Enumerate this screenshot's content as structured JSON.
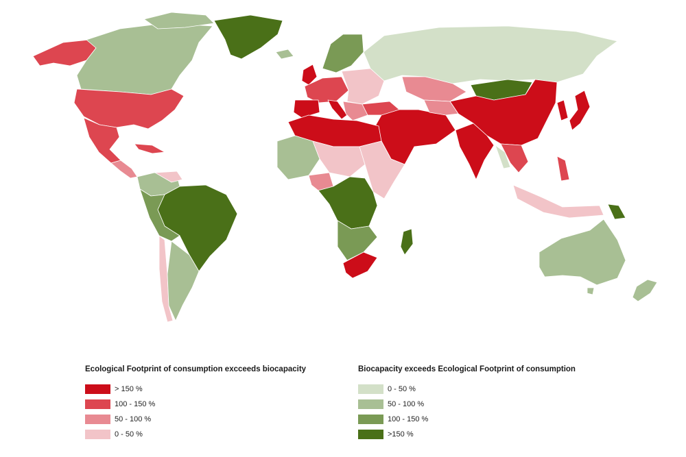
{
  "colors": {
    "deficit_gt150": "#cc0d19",
    "deficit_100_150": "#dd4650",
    "deficit_50_100": "#e88a92",
    "deficit_0_50": "#f2c4c8",
    "reserve_0_50": "#d3e0c8",
    "reserve_50_100": "#a8bf94",
    "reserve_100_150": "#7a9a55",
    "reserve_gt150": "#4a7018"
  },
  "legend_deficit": {
    "title": "Ecological Footprint of consumption excceeds biocapacity",
    "items": [
      {
        "label": "> 150 %",
        "color": "#cc0d19"
      },
      {
        "label": "100 - 150 %",
        "color": "#dd4650"
      },
      {
        "label": "50 - 100 %",
        "color": "#e88a92"
      },
      {
        "label": "0 - 50 %",
        "color": "#f2c4c8"
      }
    ]
  },
  "legend_reserve": {
    "title": "Biocapacity exceeds Ecological Footprint of consumption",
    "items": [
      {
        "label": "0 - 50 %",
        "color": "#d3e0c8"
      },
      {
        "label": "50 - 100 %",
        "color": "#a8bf94"
      },
      {
        "label": "100 - 150 %",
        "color": "#7a9a55"
      },
      {
        "label": ">150 %",
        "color": "#4a7018"
      }
    ]
  }
}
